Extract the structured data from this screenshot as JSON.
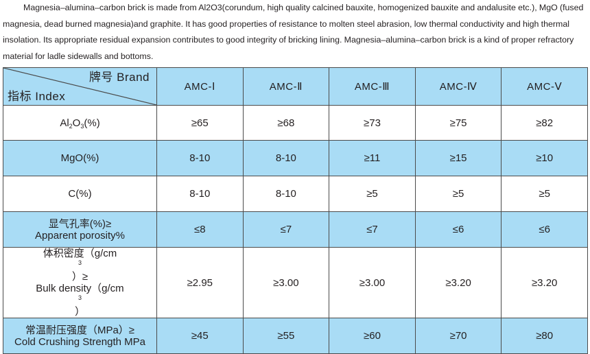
{
  "intro_text": "Magnesia–alumina–carbon brick is made from Al2O3(corundum, high quality calcined bauxite, homogenized bauxite and andalusite etc.), MgO (fused magnesia, dead burned magnesia)and graphite. It has good properties of resistance to molten steel abrasion, low thermal conductivity and high thermal insolation. Its appropriate residual expansion contributes to good integrity of bricking lining. Magnesia–alumina–carbon brick is a kind of proper refractory material for ladle sidewalls and bottoms.",
  "table": {
    "corner": {
      "brand_label": "牌号 Brand",
      "index_label": "指标 Index"
    },
    "columns": [
      "AMC-Ⅰ",
      "AMC-Ⅱ",
      "AMC-Ⅲ",
      "AMC-Ⅳ",
      "AMC-Ⅴ"
    ],
    "rows": [
      {
        "label_base": "Al",
        "label_sub1": "2",
        "label_mid": "O",
        "label_sub2": "3",
        "label_tail": "(%)",
        "values": [
          "≥65",
          "≥68",
          "≥73",
          "≥75",
          "≥82"
        ]
      },
      {
        "label": "MgO(%)",
        "values": [
          "8-10",
          "8-10",
          "≥11",
          "≥15",
          "≥10"
        ]
      },
      {
        "label": "C(%)",
        "values": [
          "8-10",
          "8-10",
          "≥5",
          "≥5",
          "≥5"
        ]
      },
      {
        "label_zh": "显气孔率(%)≥",
        "label_en": "Apparent porosity%",
        "values": [
          "≤8",
          "≤7",
          "≤7",
          "≤6",
          "≤6"
        ]
      },
      {
        "label_zh_pre": "体积密度（g/cm",
        "label_zh_sup": "3",
        "label_zh_post": "）≥",
        "label_en_pre": "Bulk density（g/cm",
        "label_en_sup": "3",
        "label_en_post": "）",
        "values": [
          "≥2.95",
          "≥3.00",
          "≥3.00",
          "≥3.20",
          "≥3.20"
        ]
      },
      {
        "label_zh": "常温耐压强度（MPa）≥",
        "label_en": "Cold Crushing Strength MPa",
        "values": [
          "≥45",
          "≥55",
          "≥60",
          "≥70",
          "≥80"
        ]
      }
    ]
  },
  "colors": {
    "blue_row": "#a9dcf5",
    "white_row": "#ffffff",
    "border": "#4a4a4a"
  }
}
